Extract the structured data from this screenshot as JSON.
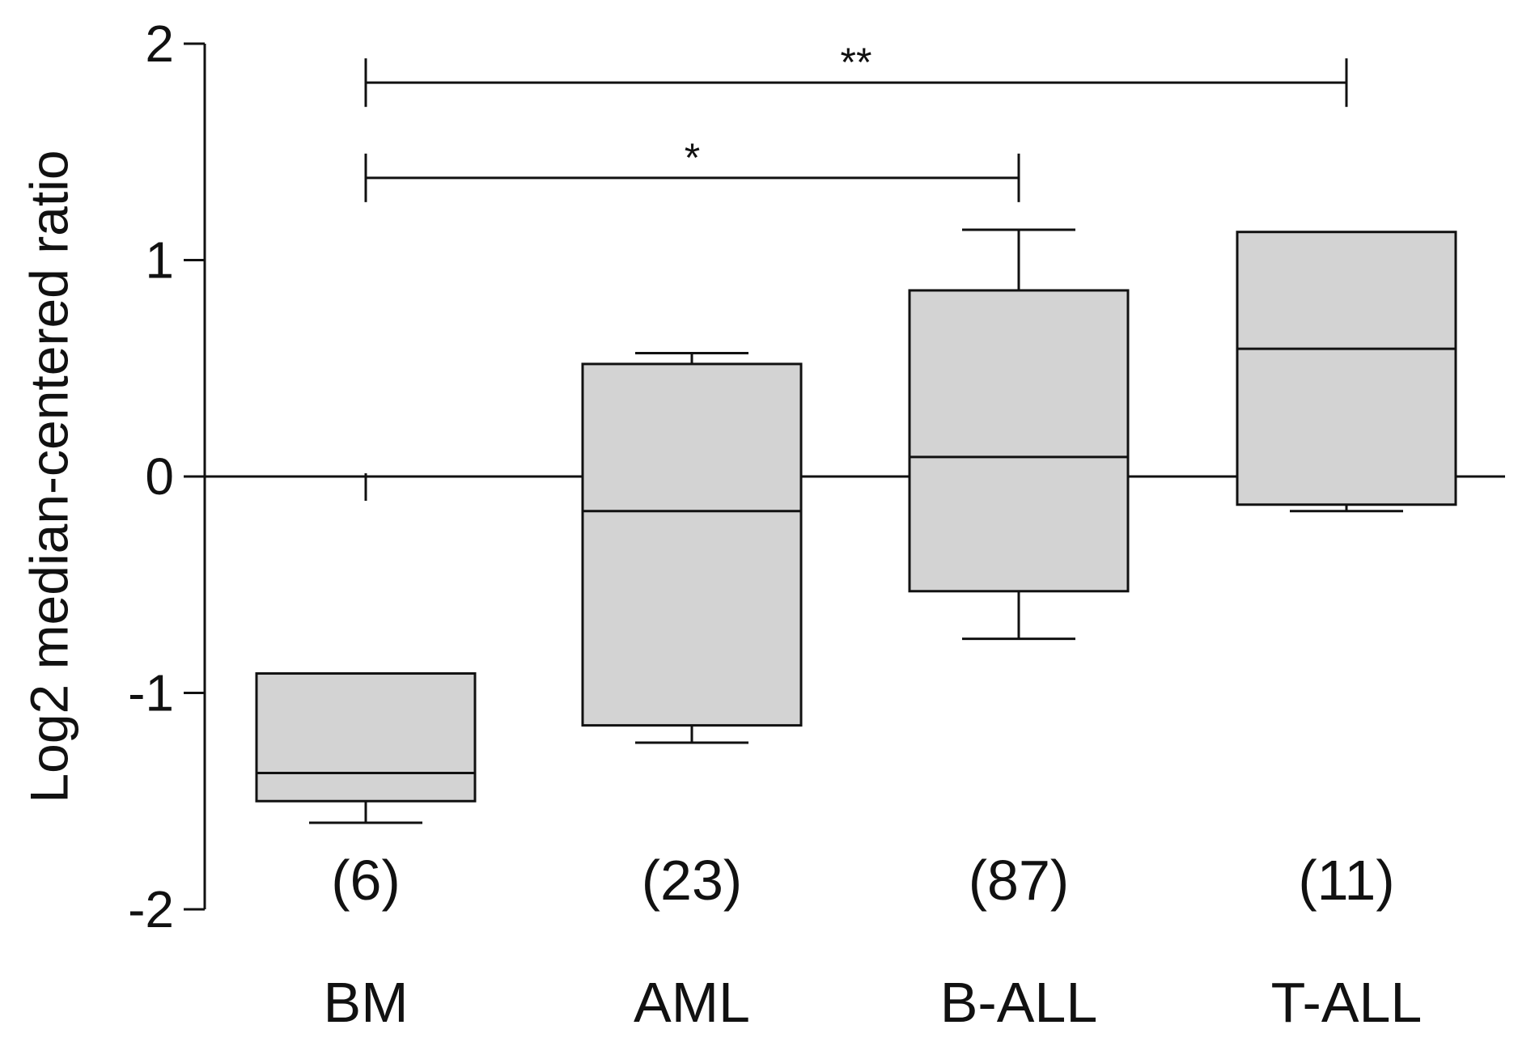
{
  "chart_data": {
    "type": "box",
    "title": "",
    "xlabel": "",
    "ylabel": "Log2 median-centered ratio",
    "ylim": [
      -2,
      2
    ],
    "yticks": [
      "2",
      "1",
      "0",
      "-1",
      "-2"
    ],
    "ytick_values": [
      2,
      1,
      0,
      -1,
      -2
    ],
    "reference_line": 0,
    "box_color": "#d3d3d3",
    "line_color": "#111111",
    "categories": [
      "BM",
      "AML",
      "B-ALL",
      "T-ALL"
    ],
    "counts": [
      "(6)",
      "(23)",
      "(87)",
      "(11)"
    ],
    "boxes": [
      {
        "category": "BM",
        "whisker_low": -1.6,
        "q1": -1.5,
        "median": -1.37,
        "q3": -0.91,
        "whisker_high": -0.91
      },
      {
        "category": "AML",
        "whisker_low": -1.23,
        "q1": -1.15,
        "median": -0.16,
        "q3": 0.52,
        "whisker_high": 0.57
      },
      {
        "category": "B-ALL",
        "whisker_low": -0.75,
        "q1": -0.53,
        "median": 0.09,
        "q3": 0.86,
        "whisker_high": 1.14
      },
      {
        "category": "T-ALL",
        "whisker_low": -0.16,
        "q1": -0.13,
        "median": 0.59,
        "q3": 1.13,
        "whisker_high": 1.13
      }
    ],
    "annotations": [
      {
        "label": "**",
        "from": "BM",
        "to": "T-ALL",
        "y": 1.82
      },
      {
        "label": "*",
        "from": "BM",
        "to": "B-ALL",
        "y": 1.38
      }
    ]
  }
}
